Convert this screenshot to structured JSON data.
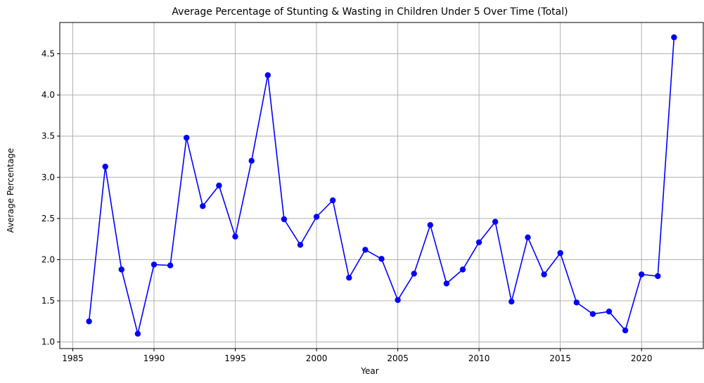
{
  "chart_data": {
    "type": "line",
    "title": "Average Percentage of Stunting & Wasting in Children Under 5 Over Time (Total)",
    "xlabel": "Year",
    "ylabel": "Average Percentage",
    "xlim": [
      1984.2,
      2023.8
    ],
    "ylim": [
      0.92,
      4.88
    ],
    "xticks": [
      1985,
      1990,
      1995,
      2000,
      2005,
      2010,
      2015,
      2020
    ],
    "yticks": [
      1.0,
      1.5,
      2.0,
      2.5,
      3.0,
      3.5,
      4.0,
      4.5
    ],
    "ytick_labels": [
      "1.0",
      "1.5",
      "2.0",
      "2.5",
      "3.0",
      "3.5",
      "4.0",
      "4.5"
    ],
    "grid": true,
    "legend": "none",
    "line_color": "#0000ff",
    "marker_color": "#0000ff",
    "series": [
      {
        "x": [
          1986,
          1987,
          1988,
          1989,
          1990,
          1991,
          1992,
          1993,
          1994,
          1995,
          1996,
          1997,
          1998,
          1999,
          2000,
          2001,
          2002,
          2003,
          2004,
          2005,
          2006,
          2007,
          2008,
          2009,
          2010,
          2011,
          2012,
          2013,
          2014,
          2015,
          2016,
          2017,
          2018,
          2019,
          2020,
          2021,
          2022
        ],
        "values": [
          1.25,
          3.13,
          1.88,
          1.1,
          1.94,
          1.93,
          3.48,
          2.65,
          2.9,
          2.28,
          3.2,
          4.24,
          2.49,
          2.18,
          2.52,
          2.72,
          1.78,
          2.12,
          2.01,
          1.51,
          1.83,
          2.42,
          1.71,
          1.88,
          2.21,
          2.46,
          1.49,
          2.27,
          1.82,
          2.08,
          1.48,
          1.34,
          1.37,
          1.14,
          1.82,
          1.8,
          4.7
        ]
      }
    ]
  }
}
